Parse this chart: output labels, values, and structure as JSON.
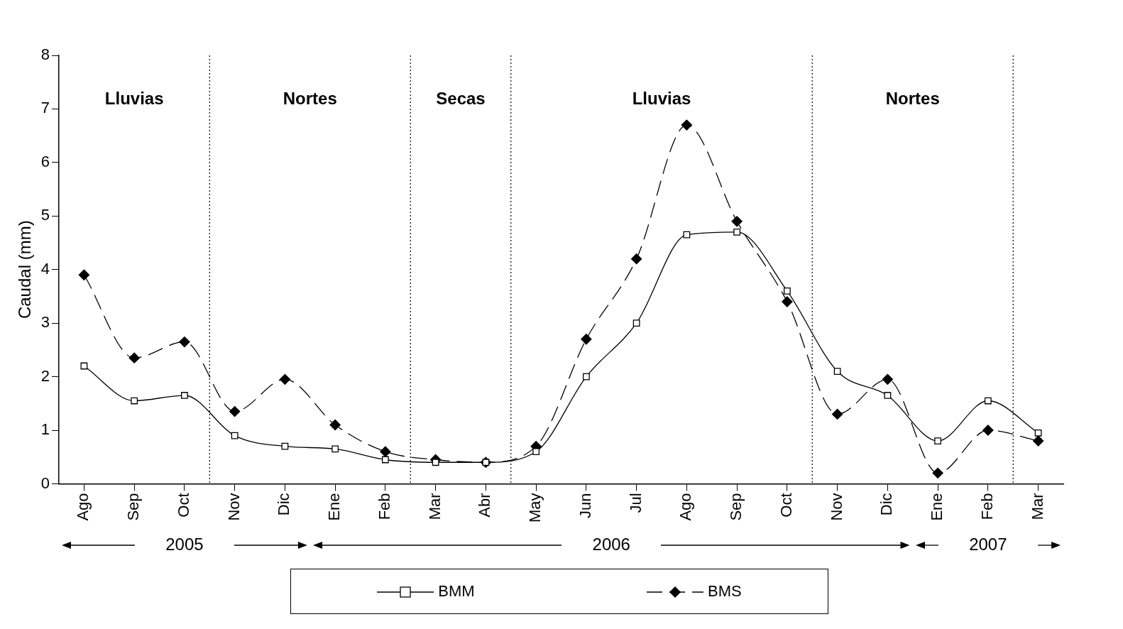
{
  "chart_data": {
    "type": "line",
    "ylabel": "Caudal (mm)",
    "categories": [
      "Ago",
      "Sep",
      "Oct",
      "Nov",
      "Dic",
      "Ene",
      "Feb",
      "Mar",
      "Abr",
      "May",
      "Jun",
      "Jul",
      "Ago",
      "Sep",
      "Oct",
      "Nov",
      "Dic",
      "Ene",
      "Feb",
      "Mar"
    ],
    "ylim": [
      0,
      8
    ],
    "yticks": [
      0,
      1,
      2,
      3,
      4,
      5,
      6,
      7,
      8
    ],
    "grid": false,
    "legend": "bottom",
    "series": [
      {
        "name": "BMM",
        "color": "#000000",
        "marker": "square",
        "line_style": "solid",
        "values": [
          2.2,
          1.55,
          1.65,
          0.9,
          0.7,
          0.65,
          0.45,
          0.4,
          0.4,
          0.6,
          2.0,
          3.0,
          4.65,
          4.7,
          3.6,
          2.1,
          1.65,
          0.8,
          1.55,
          0.95
        ]
      },
      {
        "name": "BMS",
        "color": "#000000",
        "marker": "diamond",
        "line_style": "dashed",
        "values": [
          3.9,
          2.35,
          2.65,
          1.35,
          1.95,
          1.1,
          0.6,
          0.45,
          0.4,
          0.7,
          2.7,
          4.2,
          6.7,
          4.9,
          3.4,
          1.3,
          1.95,
          0.2,
          1.0,
          0.8
        ]
      }
    ],
    "annotations": [
      "Lluvias",
      "Nortes",
      "Secas",
      "Lluvias",
      "Nortes",
      "2005",
      "2006",
      "2007"
    ]
  }
}
